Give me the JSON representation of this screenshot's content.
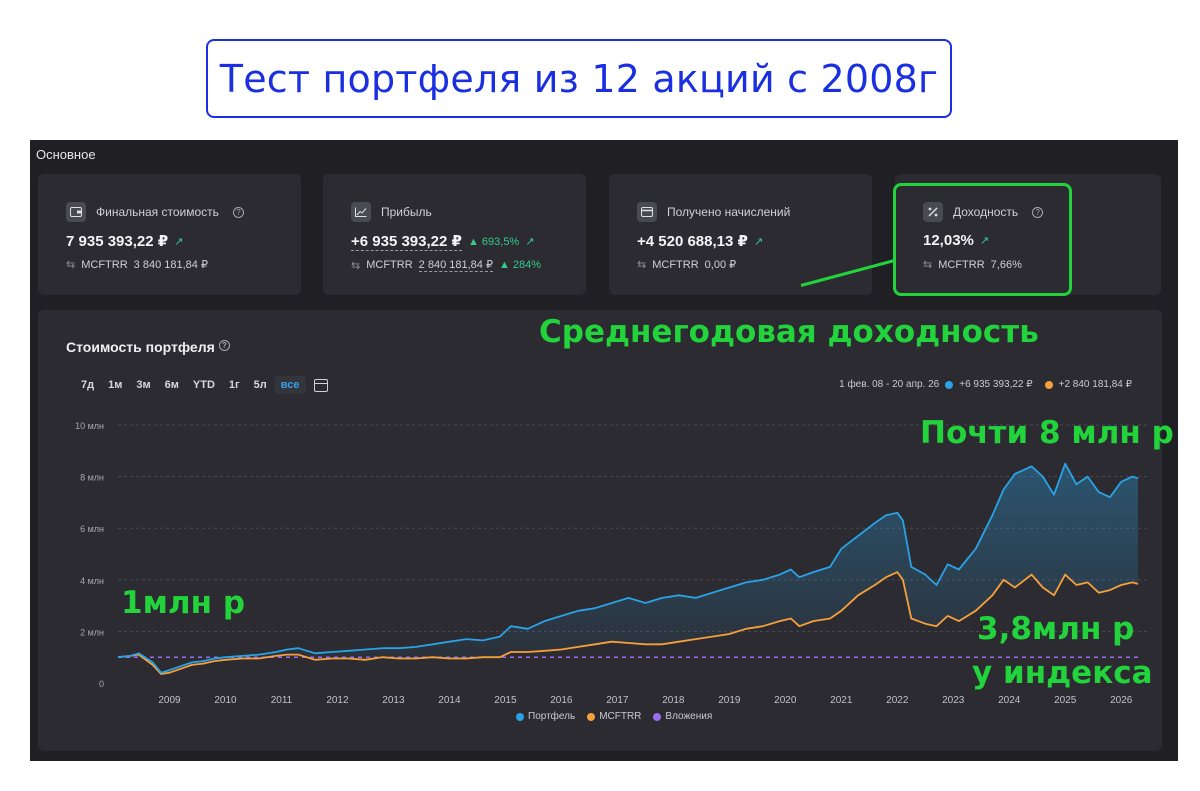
{
  "title": "Тест портфеля из 12 акций с 2008г",
  "section_label": "Основное",
  "cards": [
    {
      "title": "Финальная стоимость",
      "help": true,
      "value": "7 935 393,22 ₽",
      "delta": "",
      "sub_name": "MCFTRR",
      "sub_value": "3 840 181,84 ₽",
      "sub_delta": ""
    },
    {
      "title": "Прибыль",
      "help": false,
      "value": "+6 935 393,22 ₽",
      "delta": "693,5%",
      "sub_name": "MCFTRR",
      "sub_value": "2 840 181,84 ₽",
      "sub_delta": "284%"
    },
    {
      "title": "Получено начислений",
      "help": false,
      "value": "+4 520 688,13 ₽",
      "delta": "",
      "sub_name": "MCFTRR",
      "sub_value": "0,00 ₽",
      "sub_delta": ""
    },
    {
      "title": "Доходность",
      "help": true,
      "value": "12,03%",
      "delta": "",
      "sub_name": "MCFTRR",
      "sub_value": "7,66%",
      "sub_delta": ""
    }
  ],
  "chart_panel": {
    "title": "Стоимость портфеля",
    "ranges": [
      "7д",
      "1м",
      "3м",
      "6м",
      "YTD",
      "1г",
      "5л",
      "все"
    ],
    "active_range": "все",
    "period": "1 фев. 08 - 20 апр. 26",
    "portfolio_profit": "+6 935 393,22 ₽",
    "index_profit": "+2 840 181,84 ₽"
  },
  "annotations": {
    "avg_return": "Среднегодовая доходность",
    "almost_8m": "Почти 8 млн р",
    "one_m": "1млн р",
    "index_line1": "3,8млн р",
    "index_line2": "у индекса"
  },
  "colors": {
    "portfolio": "#2aa3e6",
    "index": "#f5a03a",
    "contributions": "#9b6cf0",
    "accent_green": "#22d33c",
    "title_blue": "#1a2fe0"
  },
  "chart_data": {
    "type": "line",
    "x_ticks": [
      "2009",
      "2010",
      "2011",
      "2012",
      "2013",
      "2014",
      "2015",
      "2016",
      "2017",
      "2018",
      "2019",
      "2020",
      "2021",
      "2022",
      "2023",
      "2024",
      "2025",
      "2026"
    ],
    "y_ticks": [
      "0",
      "2 млн",
      "4 млн",
      "6 млн",
      "8 млн",
      "10 млн"
    ],
    "ylim": [
      0,
      10000000
    ],
    "xlim": [
      2008.08,
      2026.3
    ],
    "grid": true,
    "legend": "bottom",
    "series": [
      {
        "name": "Портфель",
        "x": [
          2008.08,
          2008.3,
          2008.45,
          2008.7,
          2008.85,
          2009.0,
          2009.2,
          2009.4,
          2009.6,
          2009.8,
          2010.0,
          2010.3,
          2010.6,
          2010.9,
          2011.1,
          2011.3,
          2011.6,
          2011.9,
          2012.2,
          2012.5,
          2012.8,
          2013.1,
          2013.4,
          2013.7,
          2014.0,
          2014.3,
          2014.6,
          2014.9,
          2015.1,
          2015.4,
          2015.7,
          2016.0,
          2016.3,
          2016.6,
          2016.9,
          2017.2,
          2017.5,
          2017.8,
          2018.1,
          2018.4,
          2018.7,
          2019.0,
          2019.3,
          2019.6,
          2019.9,
          2020.1,
          2020.25,
          2020.5,
          2020.8,
          2021.0,
          2021.3,
          2021.6,
          2021.8,
          2022.0,
          2022.1,
          2022.25,
          2022.5,
          2022.7,
          2022.9,
          2023.1,
          2023.4,
          2023.7,
          2023.9,
          2024.1,
          2024.4,
          2024.6,
          2024.8,
          2025.0,
          2025.2,
          2025.4,
          2025.6,
          2025.8,
          2026.0,
          2026.2,
          2026.3
        ],
        "values": [
          1000000,
          1050000,
          1150000,
          800000,
          400000,
          500000,
          650000,
          800000,
          850000,
          950000,
          1000000,
          1050000,
          1100000,
          1200000,
          1300000,
          1350000,
          1150000,
          1200000,
          1250000,
          1300000,
          1350000,
          1350000,
          1400000,
          1500000,
          1600000,
          1700000,
          1650000,
          1800000,
          2200000,
          2100000,
          2400000,
          2600000,
          2800000,
          2900000,
          3100000,
          3300000,
          3100000,
          3300000,
          3400000,
          3300000,
          3500000,
          3700000,
          3900000,
          4000000,
          4200000,
          4400000,
          4100000,
          4300000,
          4500000,
          5200000,
          5700000,
          6200000,
          6500000,
          6600000,
          6300000,
          4500000,
          4200000,
          3800000,
          4600000,
          4400000,
          5200000,
          6500000,
          7500000,
          8100000,
          8400000,
          8000000,
          7300000,
          8500000,
          7700000,
          8000000,
          7400000,
          7200000,
          7800000,
          8000000,
          7935393
        ]
      },
      {
        "name": "MCFTRR",
        "x": [
          2008.08,
          2008.3,
          2008.45,
          2008.7,
          2008.85,
          2009.0,
          2009.2,
          2009.4,
          2009.6,
          2009.8,
          2010.0,
          2010.3,
          2010.6,
          2010.9,
          2011.1,
          2011.3,
          2011.6,
          2011.9,
          2012.2,
          2012.5,
          2012.8,
          2013.1,
          2013.4,
          2013.7,
          2014.0,
          2014.3,
          2014.6,
          2014.9,
          2015.1,
          2015.4,
          2015.7,
          2016.0,
          2016.3,
          2016.6,
          2016.9,
          2017.2,
          2017.5,
          2017.8,
          2018.1,
          2018.4,
          2018.7,
          2019.0,
          2019.3,
          2019.6,
          2019.9,
          2020.1,
          2020.25,
          2020.5,
          2020.8,
          2021.0,
          2021.3,
          2021.6,
          2021.8,
          2022.0,
          2022.1,
          2022.25,
          2022.5,
          2022.7,
          2022.9,
          2023.1,
          2023.4,
          2023.7,
          2023.9,
          2024.1,
          2024.4,
          2024.6,
          2024.8,
          2025.0,
          2025.2,
          2025.4,
          2025.6,
          2025.8,
          2026.0,
          2026.2,
          2026.3
        ],
        "values": [
          1000000,
          1050000,
          1100000,
          700000,
          350000,
          400000,
          550000,
          700000,
          750000,
          850000,
          900000,
          950000,
          950000,
          1050000,
          1100000,
          1100000,
          900000,
          950000,
          950000,
          900000,
          1000000,
          950000,
          950000,
          1000000,
          950000,
          950000,
          1000000,
          1000000,
          1200000,
          1200000,
          1250000,
          1300000,
          1400000,
          1500000,
          1600000,
          1550000,
          1500000,
          1500000,
          1600000,
          1700000,
          1800000,
          1900000,
          2100000,
          2200000,
          2400000,
          2500000,
          2200000,
          2400000,
          2500000,
          2800000,
          3400000,
          3800000,
          4100000,
          4300000,
          4000000,
          2500000,
          2300000,
          2200000,
          2600000,
          2400000,
          2800000,
          3400000,
          4000000,
          3700000,
          4200000,
          3700000,
          3400000,
          4200000,
          3800000,
          3900000,
          3500000,
          3600000,
          3800000,
          3900000,
          3840181
        ]
      },
      {
        "name": "Вложения",
        "x": [
          2008.08,
          2026.3
        ],
        "values": [
          1000000,
          1000000
        ]
      }
    ]
  }
}
